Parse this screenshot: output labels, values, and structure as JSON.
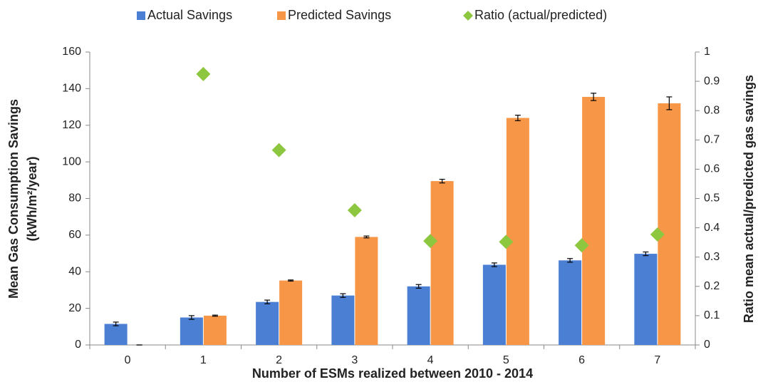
{
  "chart_data": {
    "type": "bar",
    "xlabel": "Number of ESMs realized between 2010 - 2014",
    "ylabel": [
      "Mean Gas Consumption Savings",
      "(kWh/m²/year)"
    ],
    "y2label": "Ratio mean actual/predicted gas savings",
    "categories": [
      "0",
      "1",
      "2",
      "3",
      "4",
      "5",
      "6",
      "7"
    ],
    "series": [
      {
        "name": "Actual Savings",
        "color": "#4a7fd4",
        "values": [
          11.5,
          15,
          23.5,
          27,
          32,
          43.8,
          46.2,
          49.8
        ],
        "errors": [
          1,
          1,
          1,
          1,
          1,
          1,
          1,
          1
        ]
      },
      {
        "name": "Predicted Savings",
        "color": "#f79646",
        "values": [
          0,
          16,
          35.2,
          59,
          89.5,
          124,
          135.5,
          132
        ],
        "errors": [
          0,
          0.3,
          0.3,
          0.5,
          1,
          1.5,
          2,
          3.5
        ]
      },
      {
        "name": "Ratio (actual/predicted)",
        "color": "#8dc63f",
        "type": "scatter",
        "axis": "y2",
        "values": [
          null,
          0.925,
          0.665,
          0.46,
          0.355,
          0.352,
          0.34,
          0.377
        ]
      }
    ],
    "ylim": [
      0,
      160
    ],
    "yticks": [
      0,
      20,
      40,
      60,
      80,
      100,
      120,
      140,
      160
    ],
    "y2lim": [
      0,
      1
    ],
    "y2ticks": [
      0,
      0.1,
      0.2,
      0.3,
      0.4,
      0.5,
      0.6,
      0.7,
      0.8,
      0.9,
      1
    ],
    "legend": "top"
  }
}
